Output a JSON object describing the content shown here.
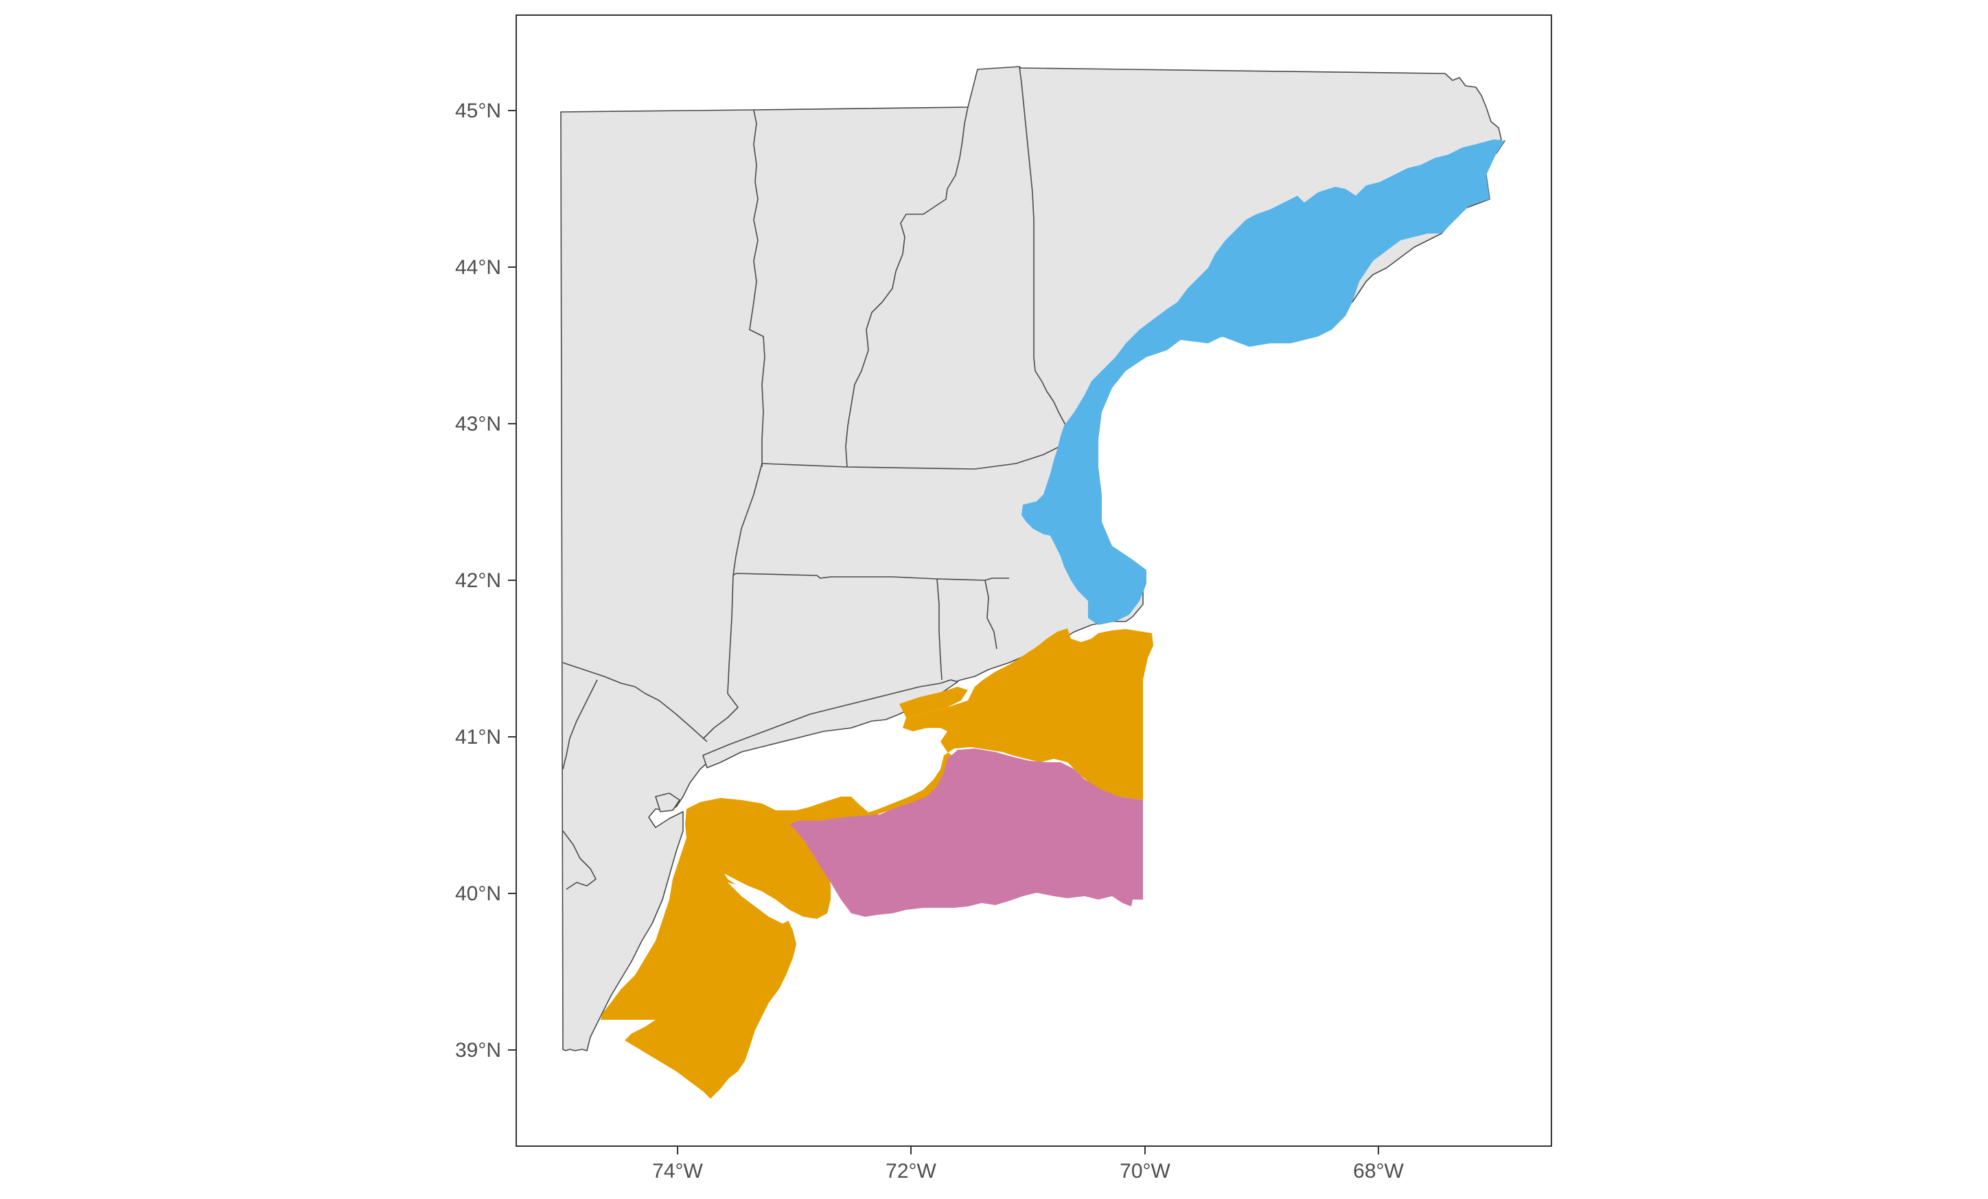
{
  "map": {
    "projection": "geographic (lon/lat)",
    "lon_range": [
      -75.7,
      -66.5
    ],
    "lat_range": [
      38.35,
      45.95
    ],
    "panel_background": "#ffffff",
    "panel_border": "#333333",
    "land_fill": "#e5e5e5",
    "land_stroke": "#4a4a4a",
    "x_ticks": [
      {
        "lon": -74,
        "label": "74°W"
      },
      {
        "lon": -72,
        "label": "72°W"
      },
      {
        "lon": -70,
        "label": "70°W"
      },
      {
        "lon": -68,
        "label": "68°W"
      }
    ],
    "y_ticks": [
      {
        "lat": 45,
        "label": "45°N"
      },
      {
        "lat": 44,
        "label": "44°N"
      },
      {
        "lat": 43,
        "label": "43°N"
      },
      {
        "lat": 42,
        "label": "42°N"
      },
      {
        "lat": 41,
        "label": "41°N"
      },
      {
        "lat": 40,
        "label": "40°N"
      },
      {
        "lat": 39,
        "label": "39°N"
      }
    ],
    "regions": [
      {
        "id": "gulf-of-maine",
        "color": "#56b4e9"
      },
      {
        "id": "southern-new-england-mid-atlantic-shelf",
        "color": "#e69f00"
      },
      {
        "id": "offshore-southern-new-england",
        "color": "#cc79a7"
      }
    ]
  }
}
